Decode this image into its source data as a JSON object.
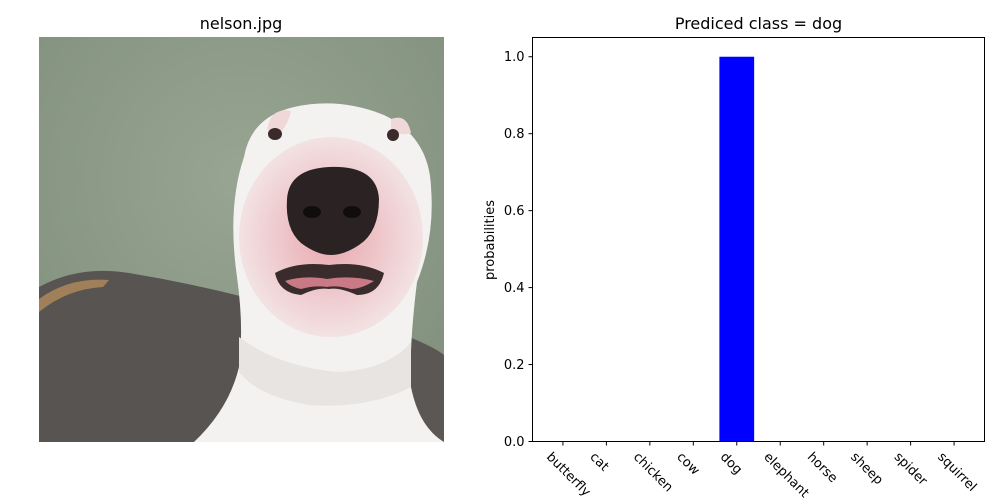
{
  "image_panel": {
    "title": "nelson.jpg",
    "subject": "dog photo"
  },
  "chart_data": {
    "type": "bar",
    "title": "Prediced class = dog",
    "xlabel": "",
    "ylabel": "probabilities",
    "categories": [
      "butterfly",
      "cat",
      "chicken",
      "cow",
      "dog",
      "elephant",
      "horse",
      "sheep",
      "spider",
      "squirrel"
    ],
    "values": [
      0,
      0,
      0,
      0,
      1.0,
      0,
      0,
      0,
      0,
      0
    ],
    "ylim": [
      0,
      1.05
    ],
    "yticks": [
      "0.0",
      "0.2",
      "0.4",
      "0.6",
      "0.8",
      "1.0"
    ],
    "bar_color": "#0000ff",
    "grid": false
  },
  "colors": {
    "wall": "#8c9a87",
    "couch": "#555555",
    "dog_white": "#f3f1ef",
    "nose": "#2a2424",
    "muzzle_pink": "#d98e98"
  }
}
